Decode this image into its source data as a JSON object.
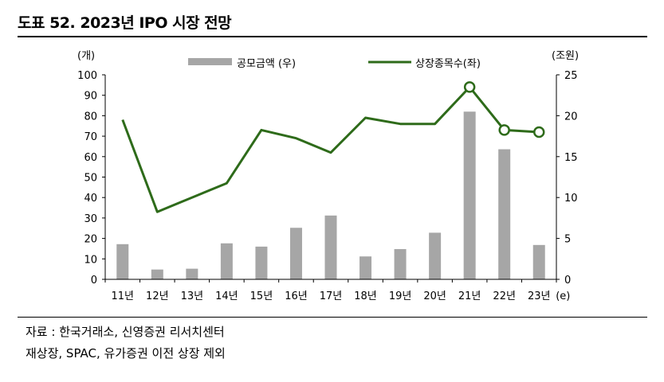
{
  "title": "도표 52. 2023년 IPO 시장 전망",
  "notes": {
    "source": "자료 : 한국거래소, 신영증권 리서치센터",
    "remark": "재상장, SPAC, 유가증권 이전 상장 제외"
  },
  "chart_data": {
    "type": "bar+line",
    "categories": [
      "11년",
      "12년",
      "13년",
      "14년",
      "15년",
      "16년",
      "17년",
      "18년",
      "19년",
      "20년",
      "21년",
      "22년",
      "23년"
    ],
    "x_suffix": "(e)",
    "left_axis": {
      "unit": "(개)",
      "min": 0,
      "max": 100,
      "step": 10
    },
    "right_axis": {
      "unit": "(조원)",
      "min": 0,
      "max": 25,
      "step": 5
    },
    "series": [
      {
        "name": "공모금액 (우)",
        "type": "bar",
        "axis": "right",
        "color": "#a6a6a6",
        "values": [
          4.3,
          1.2,
          1.3,
          4.4,
          4.0,
          6.3,
          7.8,
          2.8,
          3.7,
          5.7,
          20.5,
          15.9,
          4.2
        ]
      },
      {
        "name": "상장종목수(좌)",
        "type": "line",
        "axis": "left",
        "color": "#2e6b1a",
        "values": [
          78,
          33,
          40,
          47,
          73,
          69,
          62,
          79,
          76,
          76,
          94,
          73,
          72
        ],
        "marker_indices": [
          10,
          11,
          12
        ]
      }
    ],
    "grid": false,
    "legend_position": "top"
  }
}
